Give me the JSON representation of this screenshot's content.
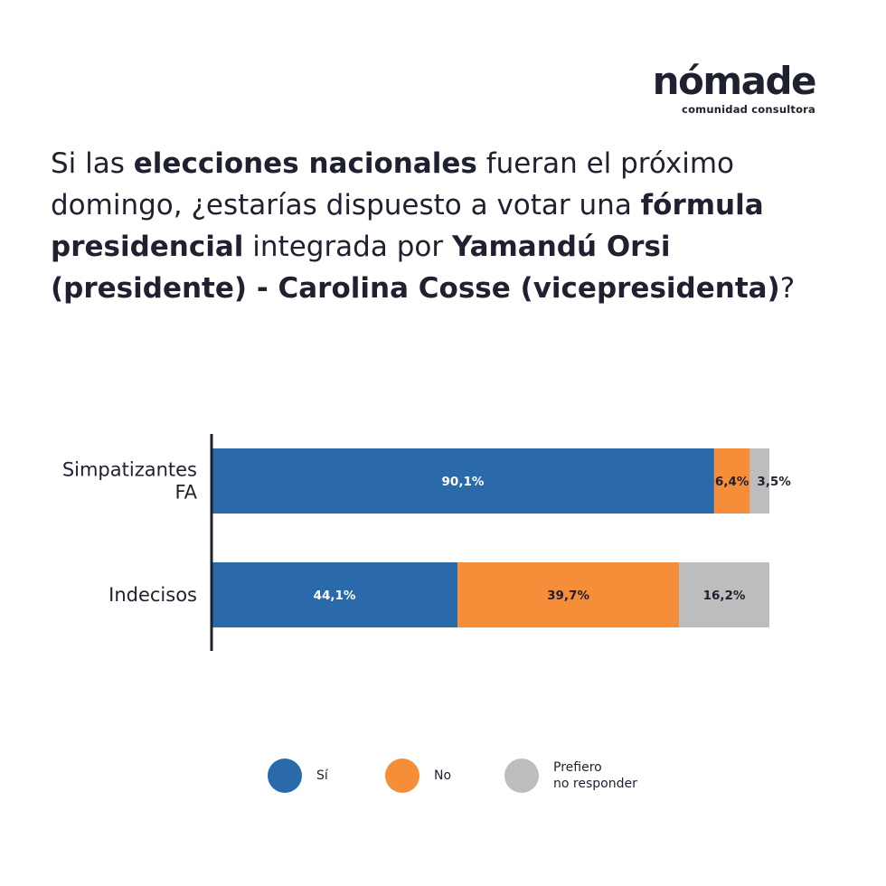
{
  "brand": {
    "name": "nómade",
    "tagline": "comunidad consultora"
  },
  "question": {
    "parts": [
      {
        "text": "Si las ",
        "bold": false
      },
      {
        "text": "elecciones nacionales",
        "bold": true
      },
      {
        "text": " fueran el próximo domingo, ¿estarías dispuesto a votar una ",
        "bold": false
      },
      {
        "text": "fórmula presidencial",
        "bold": true
      },
      {
        "text": " integrada por ",
        "bold": false
      },
      {
        "text": "Yamandú Orsi (presidente) - Carolina Cosse (vicepresidenta)",
        "bold": true
      },
      {
        "text": "?",
        "bold": false
      }
    ]
  },
  "colors": {
    "si": "#2a6aab",
    "no": "#f58d39",
    "prefiero": "#bdbdbd",
    "axis": "#1f2030",
    "text": "#1f2030"
  },
  "chart_data": {
    "type": "bar",
    "orientation": "horizontal",
    "stacked": true,
    "categories": [
      "Simpatizantes\nFA",
      "Indecisos"
    ],
    "series": [
      {
        "name": "Sí",
        "values": [
          90.1,
          44.1
        ],
        "labels": [
          "90,1%",
          "44,1%"
        ],
        "color": "#2a6aab",
        "label_color": "#ffffff"
      },
      {
        "name": "No",
        "values": [
          6.4,
          39.7
        ],
        "labels": [
          "6,4%",
          "39,7%"
        ],
        "color": "#f58d39",
        "label_color": "#1f2030"
      },
      {
        "name": "Prefiero\nno responder",
        "values": [
          3.5,
          16.2
        ],
        "labels": [
          "3,5%",
          "16,2%"
        ],
        "color": "#bdbdbd",
        "label_color": "#1f2030"
      }
    ],
    "xlim": [
      0,
      100
    ],
    "grid": false,
    "legend": "bottom"
  },
  "legend": {
    "items": [
      {
        "label": "Sí",
        "color": "#2a6aab"
      },
      {
        "label": "No",
        "color": "#f58d39"
      },
      {
        "label": "Prefiero\nno responder",
        "color": "#bdbdbd"
      }
    ]
  }
}
